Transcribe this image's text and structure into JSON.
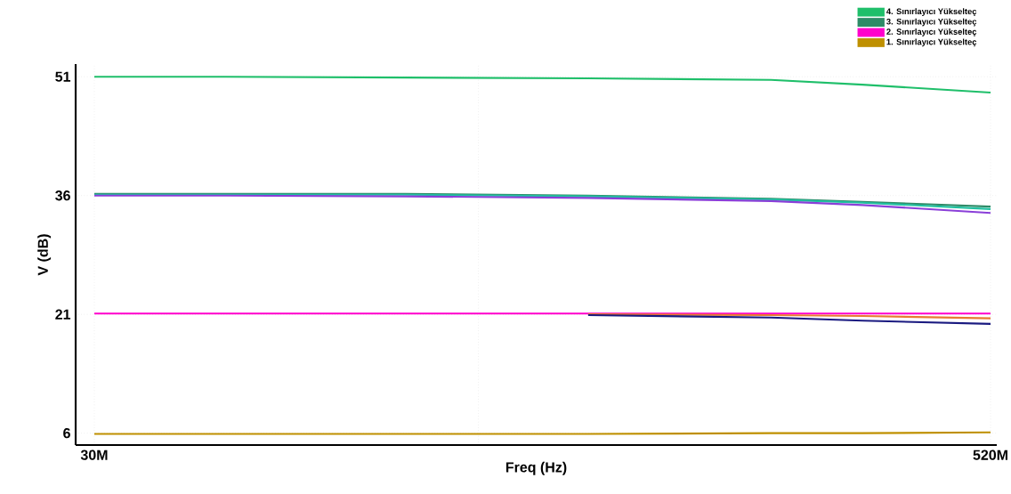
{
  "chart_data": {
    "type": "line",
    "xlabel": "Freq (Hz)",
    "ylabel": "V (dB)",
    "x": [
      30,
      100,
      200,
      300,
      400,
      450,
      520
    ],
    "xlim": [
      19.8,
      523.4
    ],
    "xticks": [
      {
        "value": 30,
        "label": "30M"
      },
      {
        "value": 240,
        "label": null
      },
      {
        "value": 520,
        "label": "520M"
      }
    ],
    "ylim": [
      4.5,
      52.6
    ],
    "yticks": [
      6,
      21,
      36,
      51
    ],
    "grid": true,
    "legend": "top right",
    "marker": "none",
    "line_style": "solid",
    "series": [
      {
        "name": "4. Sınırlayıcı Yükselteç",
        "color": "#1fbf6a",
        "values": [
          51.0,
          51.0,
          50.9,
          50.8,
          50.6,
          50.0,
          49.0
        ]
      },
      {
        "name": "3. Sınırlayıcı Yükselteç",
        "color": "#2e8b67",
        "values": [
          36.2,
          36.2,
          36.2,
          36.0,
          35.6,
          35.2,
          34.6
        ]
      },
      {
        "name": "2. Sınırlayıcı Yükselteç",
        "color": "#ff00cc",
        "values": [
          21.1,
          21.1,
          21.1,
          21.1,
          21.1,
          21.1,
          21.1
        ]
      },
      {
        "name": "1. Sınırlayıcı Yükselteç",
        "color": "#bf9000",
        "values": [
          5.9,
          5.9,
          5.9,
          5.9,
          6.0,
          6.0,
          6.1
        ]
      },
      {
        "color": "#20c0a0",
        "values": [
          36.1,
          36.1,
          36.1,
          35.9,
          35.5,
          35.1,
          34.3
        ]
      },
      {
        "color": "#8a3fd8",
        "values": [
          36.0,
          36.0,
          35.9,
          35.7,
          35.3,
          34.8,
          33.8
        ]
      },
      {
        "color": "#e87a30",
        "values": [
          null,
          null,
          null,
          21.0,
          20.9,
          20.8,
          20.5
        ]
      },
      {
        "color": "#1a1a80",
        "values": [
          null,
          null,
          null,
          20.9,
          20.6,
          20.2,
          19.8
        ]
      }
    ]
  }
}
